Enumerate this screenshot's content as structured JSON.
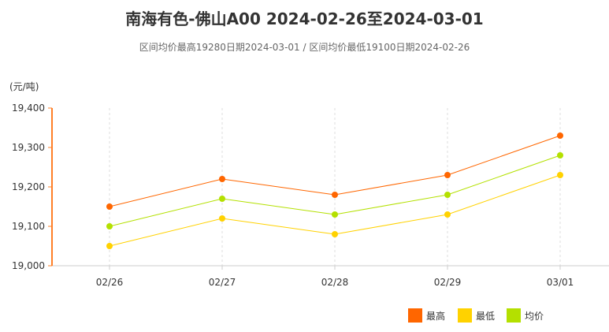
{
  "chart_data": {
    "type": "line",
    "title": "南海有色-佛山A00 2024-02-26至2024-03-01",
    "subtitle": "区间均价最高19280日期2024-03-01 / 区间均价最低19100日期2024-02-26",
    "ylabel": "(元/吨)",
    "ylim": [
      19000,
      19400
    ],
    "yticks": [
      "19,000",
      "19,100",
      "19,200",
      "19,300",
      "19,400"
    ],
    "ytick_values": [
      19000,
      19100,
      19200,
      19300,
      19400
    ],
    "categories": [
      "02/26",
      "02/27",
      "02/28",
      "02/29",
      "03/01"
    ],
    "grid": "vertical dashed",
    "legend_position": "bottom-right",
    "series": [
      {
        "name": "最高",
        "color": "#ff6600",
        "values": [
          19150,
          19220,
          19180,
          19230,
          19330
        ]
      },
      {
        "name": "最低",
        "color": "#ffd200",
        "values": [
          19050,
          19120,
          19080,
          19130,
          19230
        ]
      },
      {
        "name": "均价",
        "color": "#b4e000",
        "values": [
          19100,
          19170,
          19130,
          19180,
          19280
        ]
      }
    ]
  }
}
